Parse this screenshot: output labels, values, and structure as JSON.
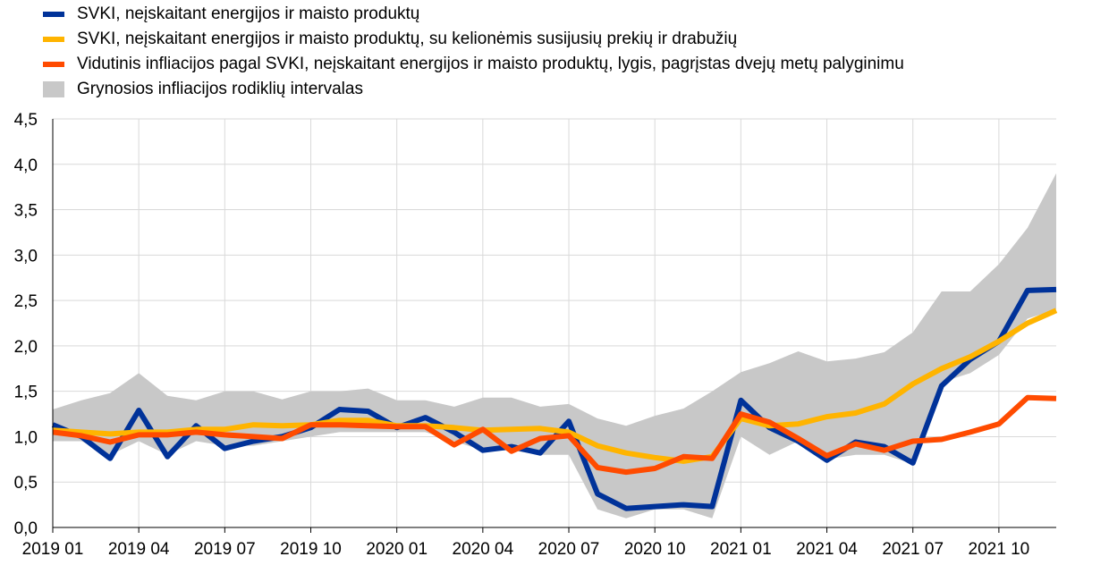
{
  "legend": [
    {
      "label": "SVKI, neįskaitant energijos ir maisto produktų",
      "color": "#003299",
      "kind": "line"
    },
    {
      "label": "SVKI, neįskaitant energijos ir maisto produktų, su kelionėmis susijusių prekių ir drabužių",
      "color": "#FFB400",
      "kind": "line"
    },
    {
      "label": "Vidutinis infliacijos pagal SVKI, neįskaitant energijos ir maisto produktų, lygis, pagrįstas dvejų metų palyginimu",
      "color": "#FF4B00",
      "kind": "line"
    },
    {
      "label": "Grynosios infliacijos rodiklių intervalas",
      "color": "#C8C8C8",
      "kind": "area"
    }
  ],
  "chart_data": {
    "type": "line",
    "x": [
      "2019 01",
      "2019 02",
      "2019 03",
      "2019 04",
      "2019 05",
      "2019 06",
      "2019 07",
      "2019 08",
      "2019 09",
      "2019 10",
      "2019 11",
      "2019 12",
      "2020 01",
      "2020 02",
      "2020 03",
      "2020 04",
      "2020 05",
      "2020 06",
      "2020 07",
      "2020 08",
      "2020 09",
      "2020 10",
      "2020 11",
      "2020 12",
      "2021 01",
      "2021 02",
      "2021 03",
      "2021 04",
      "2021 05",
      "2021 06",
      "2021 07",
      "2021 08",
      "2021 09",
      "2021 10",
      "2021 11",
      "2021 12"
    ],
    "tick_labels": [
      "2019 01",
      "2019 04",
      "2019 07",
      "2019 10",
      "2020 01",
      "2020 04",
      "2020 07",
      "2020 10",
      "2021 01",
      "2021 04",
      "2021 07",
      "2021 10"
    ],
    "ylim": [
      0,
      4.5
    ],
    "yticks": [
      "0,0",
      "0,5",
      "1,0",
      "1,5",
      "2,0",
      "2,5",
      "3,0",
      "3,5",
      "4,0",
      "4,5"
    ],
    "ytick_values": [
      0,
      0.5,
      1.0,
      1.5,
      2.0,
      2.5,
      3.0,
      3.5,
      4.0,
      4.5
    ],
    "grid": true,
    "range": {
      "name": "Grynosios infliacijos rodiklių intervalas",
      "upper": [
        1.3,
        1.4,
        1.48,
        1.7,
        1.45,
        1.4,
        1.5,
        1.5,
        1.41,
        1.5,
        1.5,
        1.53,
        1.4,
        1.4,
        1.33,
        1.43,
        1.43,
        1.33,
        1.36,
        1.2,
        1.12,
        1.23,
        1.31,
        1.5,
        1.71,
        1.81,
        1.94,
        1.83,
        1.86,
        1.93,
        2.15,
        2.6,
        2.6,
        2.9,
        3.3,
        3.9
      ],
      "lower": [
        0.95,
        0.95,
        0.8,
        0.95,
        0.8,
        0.95,
        0.9,
        0.9,
        0.95,
        1.0,
        1.05,
        1.05,
        1.05,
        1.05,
        0.95,
        0.85,
        0.85,
        0.8,
        0.8,
        0.2,
        0.1,
        0.2,
        0.2,
        0.1,
        1.0,
        0.8,
        0.95,
        0.75,
        0.8,
        0.8,
        0.7,
        1.6,
        1.7,
        1.9,
        2.3,
        2.4
      ]
    },
    "series": [
      {
        "name": "SVKI, neįskaitant energijos ir maisto produktų",
        "color": "#003299",
        "values": [
          1.13,
          1.0,
          0.76,
          1.29,
          0.78,
          1.12,
          0.87,
          0.95,
          1.0,
          1.1,
          1.3,
          1.28,
          1.1,
          1.21,
          1.05,
          0.85,
          0.89,
          0.82,
          1.17,
          0.37,
          0.21,
          0.23,
          0.25,
          0.23,
          1.4,
          1.1,
          0.95,
          0.74,
          0.94,
          0.89,
          0.71,
          1.56,
          1.85,
          2.05,
          2.61,
          2.62
        ]
      },
      {
        "name": "SVKI, neįskaitant energijos ir maisto produktų, su kelionėmis susijusių prekių ir drabužių",
        "color": "#FFB400",
        "values": [
          1.07,
          1.05,
          1.03,
          1.05,
          1.05,
          1.08,
          1.08,
          1.13,
          1.12,
          1.13,
          1.18,
          1.18,
          1.12,
          1.12,
          1.1,
          1.07,
          1.08,
          1.09,
          1.05,
          0.9,
          0.82,
          0.77,
          0.73,
          0.78,
          1.2,
          1.12,
          1.14,
          1.22,
          1.26,
          1.36,
          1.58,
          1.75,
          1.88,
          2.05,
          2.25,
          2.39
        ]
      },
      {
        "name": "Vidutinis infliacijos pagal SVKI, neįskaitant energijos ir maisto produktų, lygis, pagrįstas dvejų metų palyginimu",
        "color": "#FF4B00",
        "values": [
          1.05,
          1.01,
          0.94,
          1.02,
          1.02,
          1.05,
          1.02,
          1.0,
          0.98,
          1.13,
          1.13,
          1.12,
          1.11,
          1.11,
          0.91,
          1.08,
          0.84,
          0.98,
          1.01,
          0.66,
          0.61,
          0.65,
          0.78,
          0.76,
          1.25,
          1.16,
          0.98,
          0.79,
          0.92,
          0.85,
          0.95,
          0.97,
          1.05,
          1.14,
          1.43,
          1.42
        ]
      }
    ]
  }
}
